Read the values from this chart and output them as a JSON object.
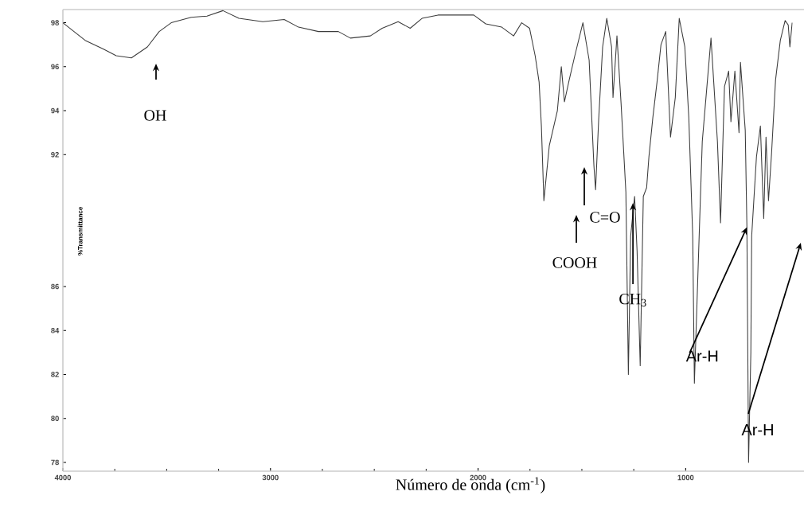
{
  "chart_data": {
    "type": "line",
    "xlabel": "Número de onda (cm$^{-1}$)",
    "ylabel": "%Transmittance",
    "xlim": [
      4000,
      430
    ],
    "xticks": [
      4000,
      3000,
      2000,
      1000
    ],
    "ylim": [
      77.6,
      98.6
    ],
    "yticks": [
      78,
      80,
      82,
      84,
      86,
      92,
      94,
      96,
      98
    ],
    "grid": false,
    "marker": "none",
    "line_style": "solid",
    "series": [
      {
        "color": "#3c3c3c",
        "x": [
          4000,
          3893,
          3804,
          3743,
          3670,
          3593,
          3536,
          3478,
          3382,
          3306,
          3229,
          3152,
          3037,
          2934,
          2865,
          2769,
          2673,
          2615,
          2519,
          2462,
          2385,
          2327,
          2270,
          2193,
          2021,
          1963,
          1886,
          1829,
          1790,
          1752,
          1725,
          1706,
          1695,
          1683,
          1657,
          1618,
          1599,
          1584,
          1561,
          1534,
          1495,
          1465,
          1442,
          1434,
          1419,
          1400,
          1380,
          1357,
          1350,
          1331,
          1311,
          1288,
          1276,
          1265,
          1246,
          1234,
          1219,
          1204,
          1188,
          1177,
          1158,
          1138,
          1119,
          1096,
          1073,
          1050,
          1031,
          1004,
          985,
          966,
          958,
          935,
          920,
          878,
          847,
          832,
          813,
          793,
          782,
          763,
          743,
          736,
          713,
          705,
          697,
          686,
          682,
          659,
          640,
          624,
          613,
          601,
          586,
          567,
          544,
          521,
          506,
          498,
          487
        ],
        "values": [
          98.0,
          97.2,
          96.8,
          96.5,
          96.4,
          96.9,
          97.6,
          98.0,
          98.25,
          98.3,
          98.55,
          98.2,
          98.05,
          98.15,
          97.8,
          97.6,
          97.6,
          97.3,
          97.4,
          97.75,
          98.05,
          97.75,
          98.2,
          98.35,
          98.35,
          97.95,
          97.8,
          97.4,
          98.0,
          97.75,
          96.5,
          95.3,
          93.3,
          89.9,
          92.4,
          94.0,
          96.0,
          94.4,
          95.4,
          96.5,
          98.0,
          96.3,
          91.5,
          90.4,
          93.6,
          96.9,
          98.2,
          96.9,
          94.6,
          97.4,
          94.3,
          90.3,
          82.0,
          88.3,
          90.1,
          87.6,
          82.4,
          90.1,
          90.5,
          91.9,
          93.7,
          95.3,
          97.0,
          97.6,
          92.8,
          94.6,
          98.2,
          96.9,
          93.7,
          88.3,
          81.6,
          88.3,
          92.6,
          97.3,
          92.6,
          88.9,
          95.1,
          95.8,
          93.5,
          95.8,
          93.0,
          96.2,
          93.1,
          88.7,
          78.0,
          83.0,
          88.3,
          91.9,
          93.3,
          89.1,
          92.8,
          89.9,
          92.1,
          95.4,
          97.2,
          98.1,
          97.9,
          96.9,
          98.0
        ]
      }
    ],
    "annotations": [
      "OH",
      "COOH",
      "C=O",
      {
        "text": "CH$_{3}$",
        "x": 1254,
        "y": 89.8
      },
      {
        "text": "Ar-H",
        "x": 705,
        "y": 88.7
      },
      "Ar-H"
    ]
  }
}
